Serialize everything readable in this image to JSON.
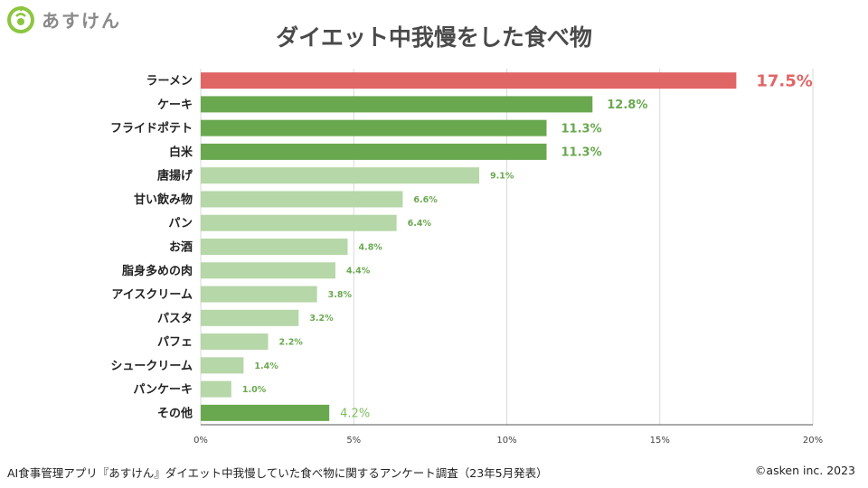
{
  "brand": {
    "name": "あすけん"
  },
  "footer": {
    "source": "AI食事管理アプリ『あすけん』ダイエット中我慢していた食べ物に関するアンケート調査（23年5月発表）",
    "copyright": "©asken inc. 2023"
  },
  "colors": {
    "highlight": "#e06666",
    "dark_green": "#6aa84f",
    "light_green": "#b6d7a8",
    "grid": "#d9d9d9"
  },
  "chart_data": {
    "type": "bar",
    "orientation": "horizontal",
    "title": "ダイエット中我慢をした食べ物",
    "xlabel": "",
    "ylabel": "",
    "xlim": [
      0,
      20
    ],
    "xticks": [
      0,
      5,
      10,
      15,
      20
    ],
    "xtick_labels": [
      "0%",
      "5%",
      "10%",
      "15%",
      "20%"
    ],
    "grid": true,
    "categories": [
      "ラーメン",
      "ケーキ",
      "フライドポテト",
      "白米",
      "唐揚げ",
      "甘い飲み物",
      "パン",
      "お酒",
      "脂身多めの肉",
      "アイスクリーム",
      "パスタ",
      "パフェ",
      "シュークリーム",
      "パンケーキ",
      "その他"
    ],
    "values": [
      17.5,
      12.8,
      11.3,
      11.3,
      9.1,
      6.6,
      6.4,
      4.8,
      4.4,
      3.8,
      3.2,
      2.2,
      1.4,
      1.0,
      4.2
    ],
    "value_labels": [
      "17.5%",
      "12.8%",
      "11.3%",
      "11.3%",
      "9.1%",
      "6.6%",
      "6.4%",
      "4.8%",
      "4.4%",
      "3.8%",
      "3.2%",
      "2.2%",
      "1.4%",
      "1.0%",
      "4.2%"
    ],
    "bar_styles": [
      "highlight",
      "dark",
      "dark",
      "dark",
      "light",
      "light",
      "light",
      "light",
      "light",
      "light",
      "light",
      "light",
      "light",
      "light",
      "dark"
    ]
  }
}
